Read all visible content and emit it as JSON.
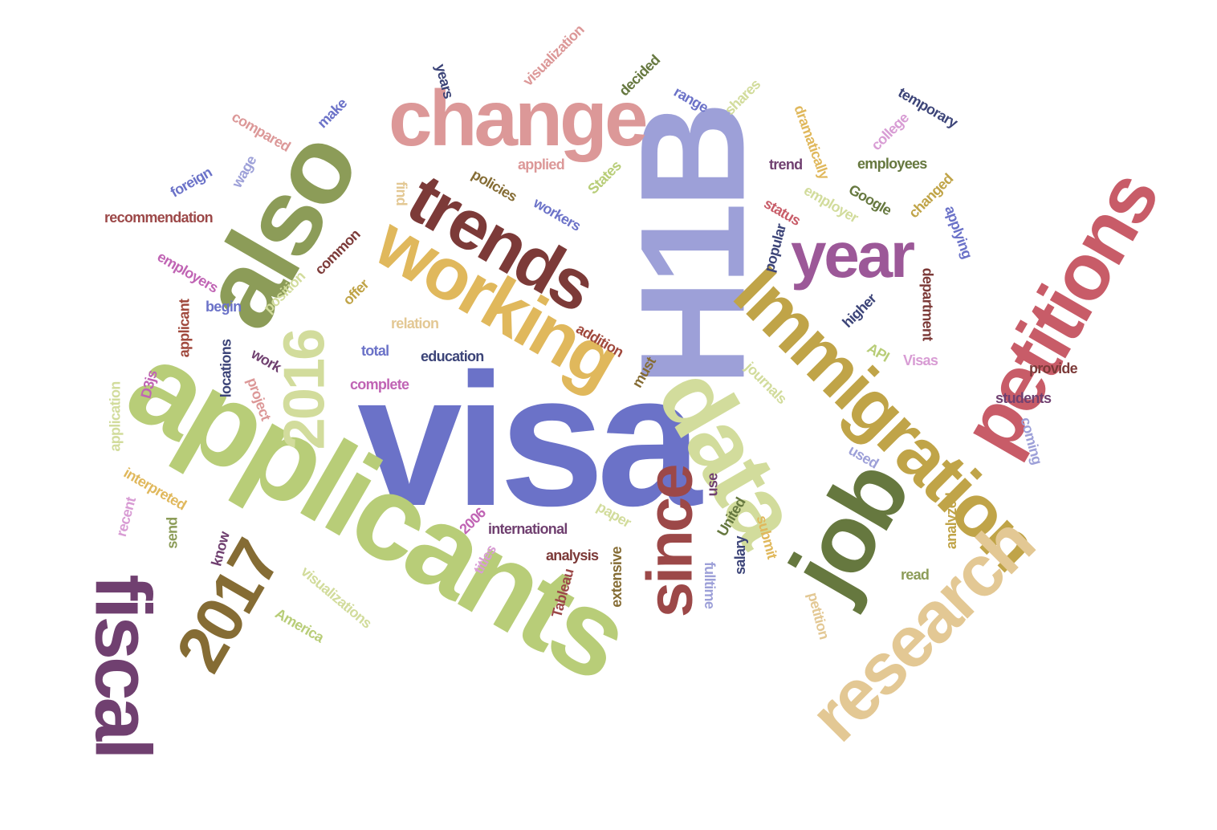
{
  "colors": {
    "periwinkle": "#6b72c8",
    "lavender": "#9da0d8",
    "lime": "#b8cd78",
    "pale_green": "#d2dc9c",
    "olive": "#8c9c58",
    "dark_olive": "#66783f",
    "mustard": "#c0a448",
    "gold": "#e0b85c",
    "tan": "#e3c894",
    "brown": "#856c34",
    "maroon": "#7c3a38",
    "brick": "#9c4848",
    "coral": "#c85c68",
    "pink": "#dc9898",
    "plum": "#9c5898",
    "deep_plum": "#704070",
    "orchid": "#c064b4",
    "light_orchid": "#d89cd4",
    "navy": "#3c4478",
    "rust": "#a0483c"
  },
  "words": [
    {
      "text": "visa",
      "color": "periwinkle"
    },
    {
      "text": "applicants",
      "color": "lime"
    },
    {
      "text": "H1B",
      "color": "lavender"
    },
    {
      "text": "also",
      "color": "olive"
    },
    {
      "text": "change",
      "color": "pink"
    },
    {
      "text": "working",
      "color": "gold"
    },
    {
      "text": "trends",
      "color": "maroon"
    },
    {
      "text": "data",
      "color": "pale_green"
    },
    {
      "text": "Immigration",
      "color": "mustard"
    },
    {
      "text": "petitions",
      "color": "coral"
    },
    {
      "text": "year",
      "color": "plum"
    },
    {
      "text": "job",
      "color": "dark_olive"
    },
    {
      "text": "research",
      "color": "tan"
    },
    {
      "text": "fiscal",
      "color": "deep_plum"
    },
    {
      "text": "2017",
      "color": "brown"
    },
    {
      "text": "2016",
      "color": "pale_green"
    },
    {
      "text": "since",
      "color": "brick"
    },
    {
      "text": "recommendation",
      "color": "brick"
    },
    {
      "text": "compared",
      "color": "pink"
    },
    {
      "text": "make",
      "color": "periwinkle"
    },
    {
      "text": "foreign",
      "color": "periwinkle"
    },
    {
      "text": "wage",
      "color": "lavender"
    },
    {
      "text": "years",
      "color": "navy"
    },
    {
      "text": "visualization",
      "color": "pink"
    },
    {
      "text": "decided",
      "color": "dark_olive"
    },
    {
      "text": "range",
      "color": "periwinkle"
    },
    {
      "text": "shares",
      "color": "pale_green"
    },
    {
      "text": "dramatically",
      "color": "gold"
    },
    {
      "text": "college",
      "color": "light_orchid"
    },
    {
      "text": "temporary",
      "color": "navy"
    },
    {
      "text": "employees",
      "color": "dark_olive"
    },
    {
      "text": "trend",
      "color": "deep_plum"
    },
    {
      "text": "Google",
      "color": "dark_olive"
    },
    {
      "text": "changed",
      "color": "mustard"
    },
    {
      "text": "applying",
      "color": "periwinkle"
    },
    {
      "text": "employer",
      "color": "pale_green"
    },
    {
      "text": "status",
      "color": "coral"
    },
    {
      "text": "popular",
      "color": "navy"
    },
    {
      "text": "department",
      "color": "maroon"
    },
    {
      "text": "applied",
      "color": "pink"
    },
    {
      "text": "States",
      "color": "lime"
    },
    {
      "text": "policies",
      "color": "brown"
    },
    {
      "text": "workers",
      "color": "periwinkle"
    },
    {
      "text": "find",
      "color": "tan"
    },
    {
      "text": "employers",
      "color": "orchid"
    },
    {
      "text": "common",
      "color": "maroon"
    },
    {
      "text": "position",
      "color": "pale_green"
    },
    {
      "text": "offer",
      "color": "mustard"
    },
    {
      "text": "begin",
      "color": "periwinkle"
    },
    {
      "text": "applicant",
      "color": "rust"
    },
    {
      "text": "relation",
      "color": "tan"
    },
    {
      "text": "total",
      "color": "periwinkle"
    },
    {
      "text": "education",
      "color": "navy"
    },
    {
      "text": "addition",
      "color": "rust"
    },
    {
      "text": "locations",
      "color": "navy"
    },
    {
      "text": "work",
      "color": "deep_plum"
    },
    {
      "text": "D3js",
      "color": "orchid"
    },
    {
      "text": "project",
      "color": "pink"
    },
    {
      "text": "complete",
      "color": "orchid"
    },
    {
      "text": "application",
      "color": "pale_green"
    },
    {
      "text": "interpreted",
      "color": "gold"
    },
    {
      "text": "recent",
      "color": "light_orchid"
    },
    {
      "text": "send",
      "color": "olive"
    },
    {
      "text": "know",
      "color": "deep_plum"
    },
    {
      "text": "2006",
      "color": "orchid"
    },
    {
      "text": "international",
      "color": "deep_plum"
    },
    {
      "text": "titles",
      "color": "light_orchid"
    },
    {
      "text": "analysis",
      "color": "maroon"
    },
    {
      "text": "Tableau",
      "color": "brick"
    },
    {
      "text": "extensive",
      "color": "brown"
    },
    {
      "text": "paper",
      "color": "pale_green"
    },
    {
      "text": "visualizations",
      "color": "pale_green"
    },
    {
      "text": "America",
      "color": "lime"
    },
    {
      "text": "must",
      "color": "brown"
    },
    {
      "text": "higher",
      "color": "navy"
    },
    {
      "text": "API",
      "color": "lime"
    },
    {
      "text": "Visas",
      "color": "light_orchid"
    },
    {
      "text": "journals",
      "color": "pale_green"
    },
    {
      "text": "provide",
      "color": "maroon"
    },
    {
      "text": "students",
      "color": "deep_plum"
    },
    {
      "text": "coming",
      "color": "lavender"
    },
    {
      "text": "used",
      "color": "lavender"
    },
    {
      "text": "use",
      "color": "deep_plum"
    },
    {
      "text": "United",
      "color": "dark_olive"
    },
    {
      "text": "submit",
      "color": "gold"
    },
    {
      "text": "salary",
      "color": "navy"
    },
    {
      "text": "fulltime",
      "color": "lavender"
    },
    {
      "text": "analyzed",
      "color": "mustard"
    },
    {
      "text": "read",
      "color": "olive"
    },
    {
      "text": "petition",
      "color": "tan"
    }
  ]
}
